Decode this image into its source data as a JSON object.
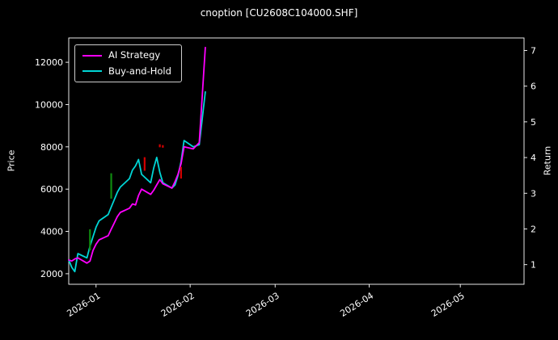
{
  "chart_data": {
    "type": "line",
    "title": "cnoption [CU2608C104000.SHF]",
    "ylabel_left": "Price",
    "ylabel_right": "Return",
    "grid": false,
    "legend_position": "upper-left",
    "x_tick_labels": [
      "2026-01",
      "2026-02",
      "2026-03",
      "2026-04",
      "2026-05"
    ],
    "x_range": [
      "2025-12-23",
      "2026-05-22"
    ],
    "y_left_ticks": [
      2000,
      4000,
      6000,
      8000,
      10000,
      12000
    ],
    "y_left_range": [
      1500,
      13150
    ],
    "y_right_ticks": [
      1,
      2,
      3,
      4,
      5,
      6,
      7
    ],
    "y_right_range": [
      0.45,
      7.35
    ],
    "colors": {
      "background": "#000000",
      "text": "#ffffff",
      "axis": "#ffffff",
      "buy_signal": "#0f8a0f",
      "sell_signal": "#d40000"
    },
    "x": [
      "2025-12-23",
      "2025-12-24",
      "2025-12-25",
      "2025-12-26",
      "2025-12-29",
      "2025-12-30",
      "2025-12-31",
      "2026-01-01",
      "2026-01-02",
      "2026-01-05",
      "2026-01-06",
      "2026-01-07",
      "2026-01-08",
      "2026-01-09",
      "2026-01-12",
      "2026-01-13",
      "2026-01-14",
      "2026-01-15",
      "2026-01-16",
      "2026-01-19",
      "2026-01-20",
      "2026-01-21",
      "2026-01-22",
      "2026-01-23",
      "2026-01-26",
      "2026-01-27",
      "2026-01-28",
      "2026-01-29",
      "2026-01-30",
      "2026-02-02",
      "2026-02-04",
      "2026-02-06"
    ],
    "series": [
      {
        "name": "AI Strategy",
        "color": "#ff00ff",
        "axis": "left",
        "values": [
          2650,
          2600,
          2700,
          2750,
          2500,
          2600,
          3100,
          3400,
          3600,
          3800,
          4100,
          4400,
          4700,
          4900,
          5100,
          5300,
          5250,
          5700,
          6000,
          5750,
          5950,
          6200,
          6450,
          6250,
          6050,
          6350,
          6700,
          7200,
          8000,
          7900,
          8200,
          12700
        ]
      },
      {
        "name": "Buy-and-Hold",
        "color": "#00d5d5",
        "axis": "left",
        "values": [
          2650,
          2300,
          2100,
          2950,
          2750,
          3300,
          3750,
          4200,
          4500,
          4800,
          5150,
          5500,
          5850,
          6100,
          6500,
          6900,
          7100,
          7400,
          6700,
          6300,
          7000,
          7500,
          6800,
          6300,
          6050,
          6200,
          6650,
          7300,
          8300,
          8000,
          8100,
          10600
        ]
      }
    ],
    "signals": {
      "buy": [
        {
          "date": "2025-12-30",
          "price_from": 3100,
          "price_to": 4100
        },
        {
          "date": "2026-01-06",
          "price_from": 5550,
          "price_to": 6750
        }
      ],
      "sell": [
        {
          "date": "2026-01-17",
          "price_from": 6870,
          "price_to": 7510
        },
        {
          "date": "2026-01-22",
          "price_from": 7980,
          "price_to": 8120
        },
        {
          "date": "2026-01-23",
          "price_from": 7960,
          "price_to": 8080
        },
        {
          "date": "2026-01-29",
          "price_from": 6500,
          "price_to": 7050
        }
      ]
    }
  }
}
